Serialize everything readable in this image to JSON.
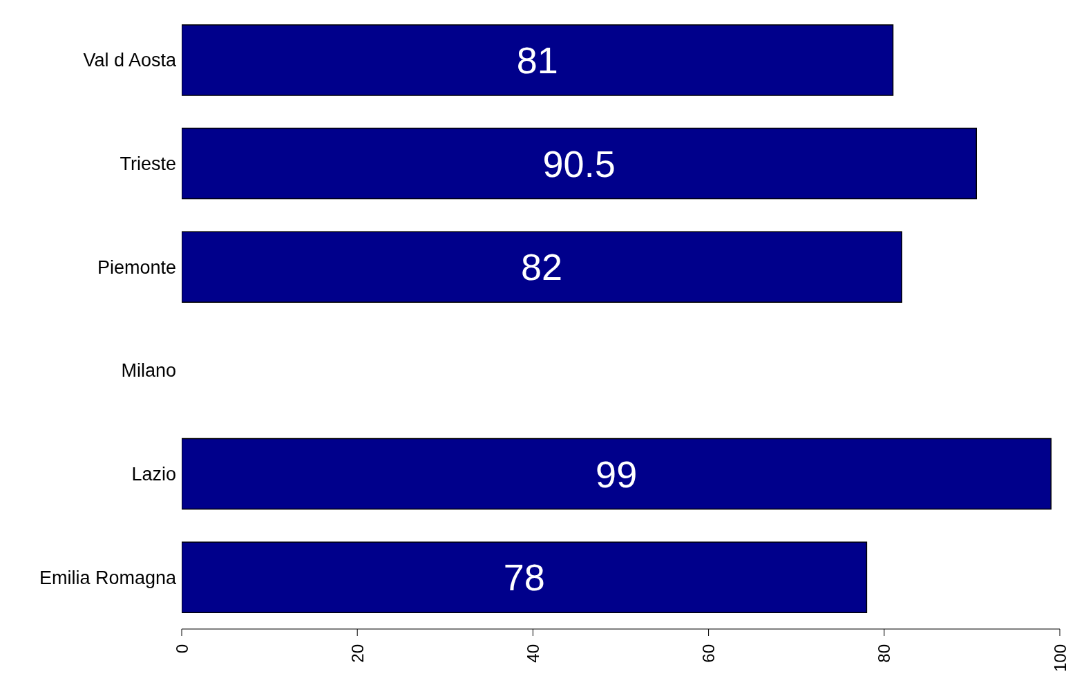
{
  "chart_data": {
    "type": "bar",
    "orientation": "horizontal",
    "categories": [
      "Val d Aosta",
      "Trieste",
      "Piemonte",
      "Milano",
      "Lazio",
      "Emilia Romagna"
    ],
    "values": [
      81,
      90.5,
      82,
      null,
      99,
      78
    ],
    "color": "#00008b",
    "xlim": [
      0,
      100
    ],
    "xticks": [
      0,
      20,
      40,
      60,
      80,
      100
    ],
    "data_labels": true
  }
}
